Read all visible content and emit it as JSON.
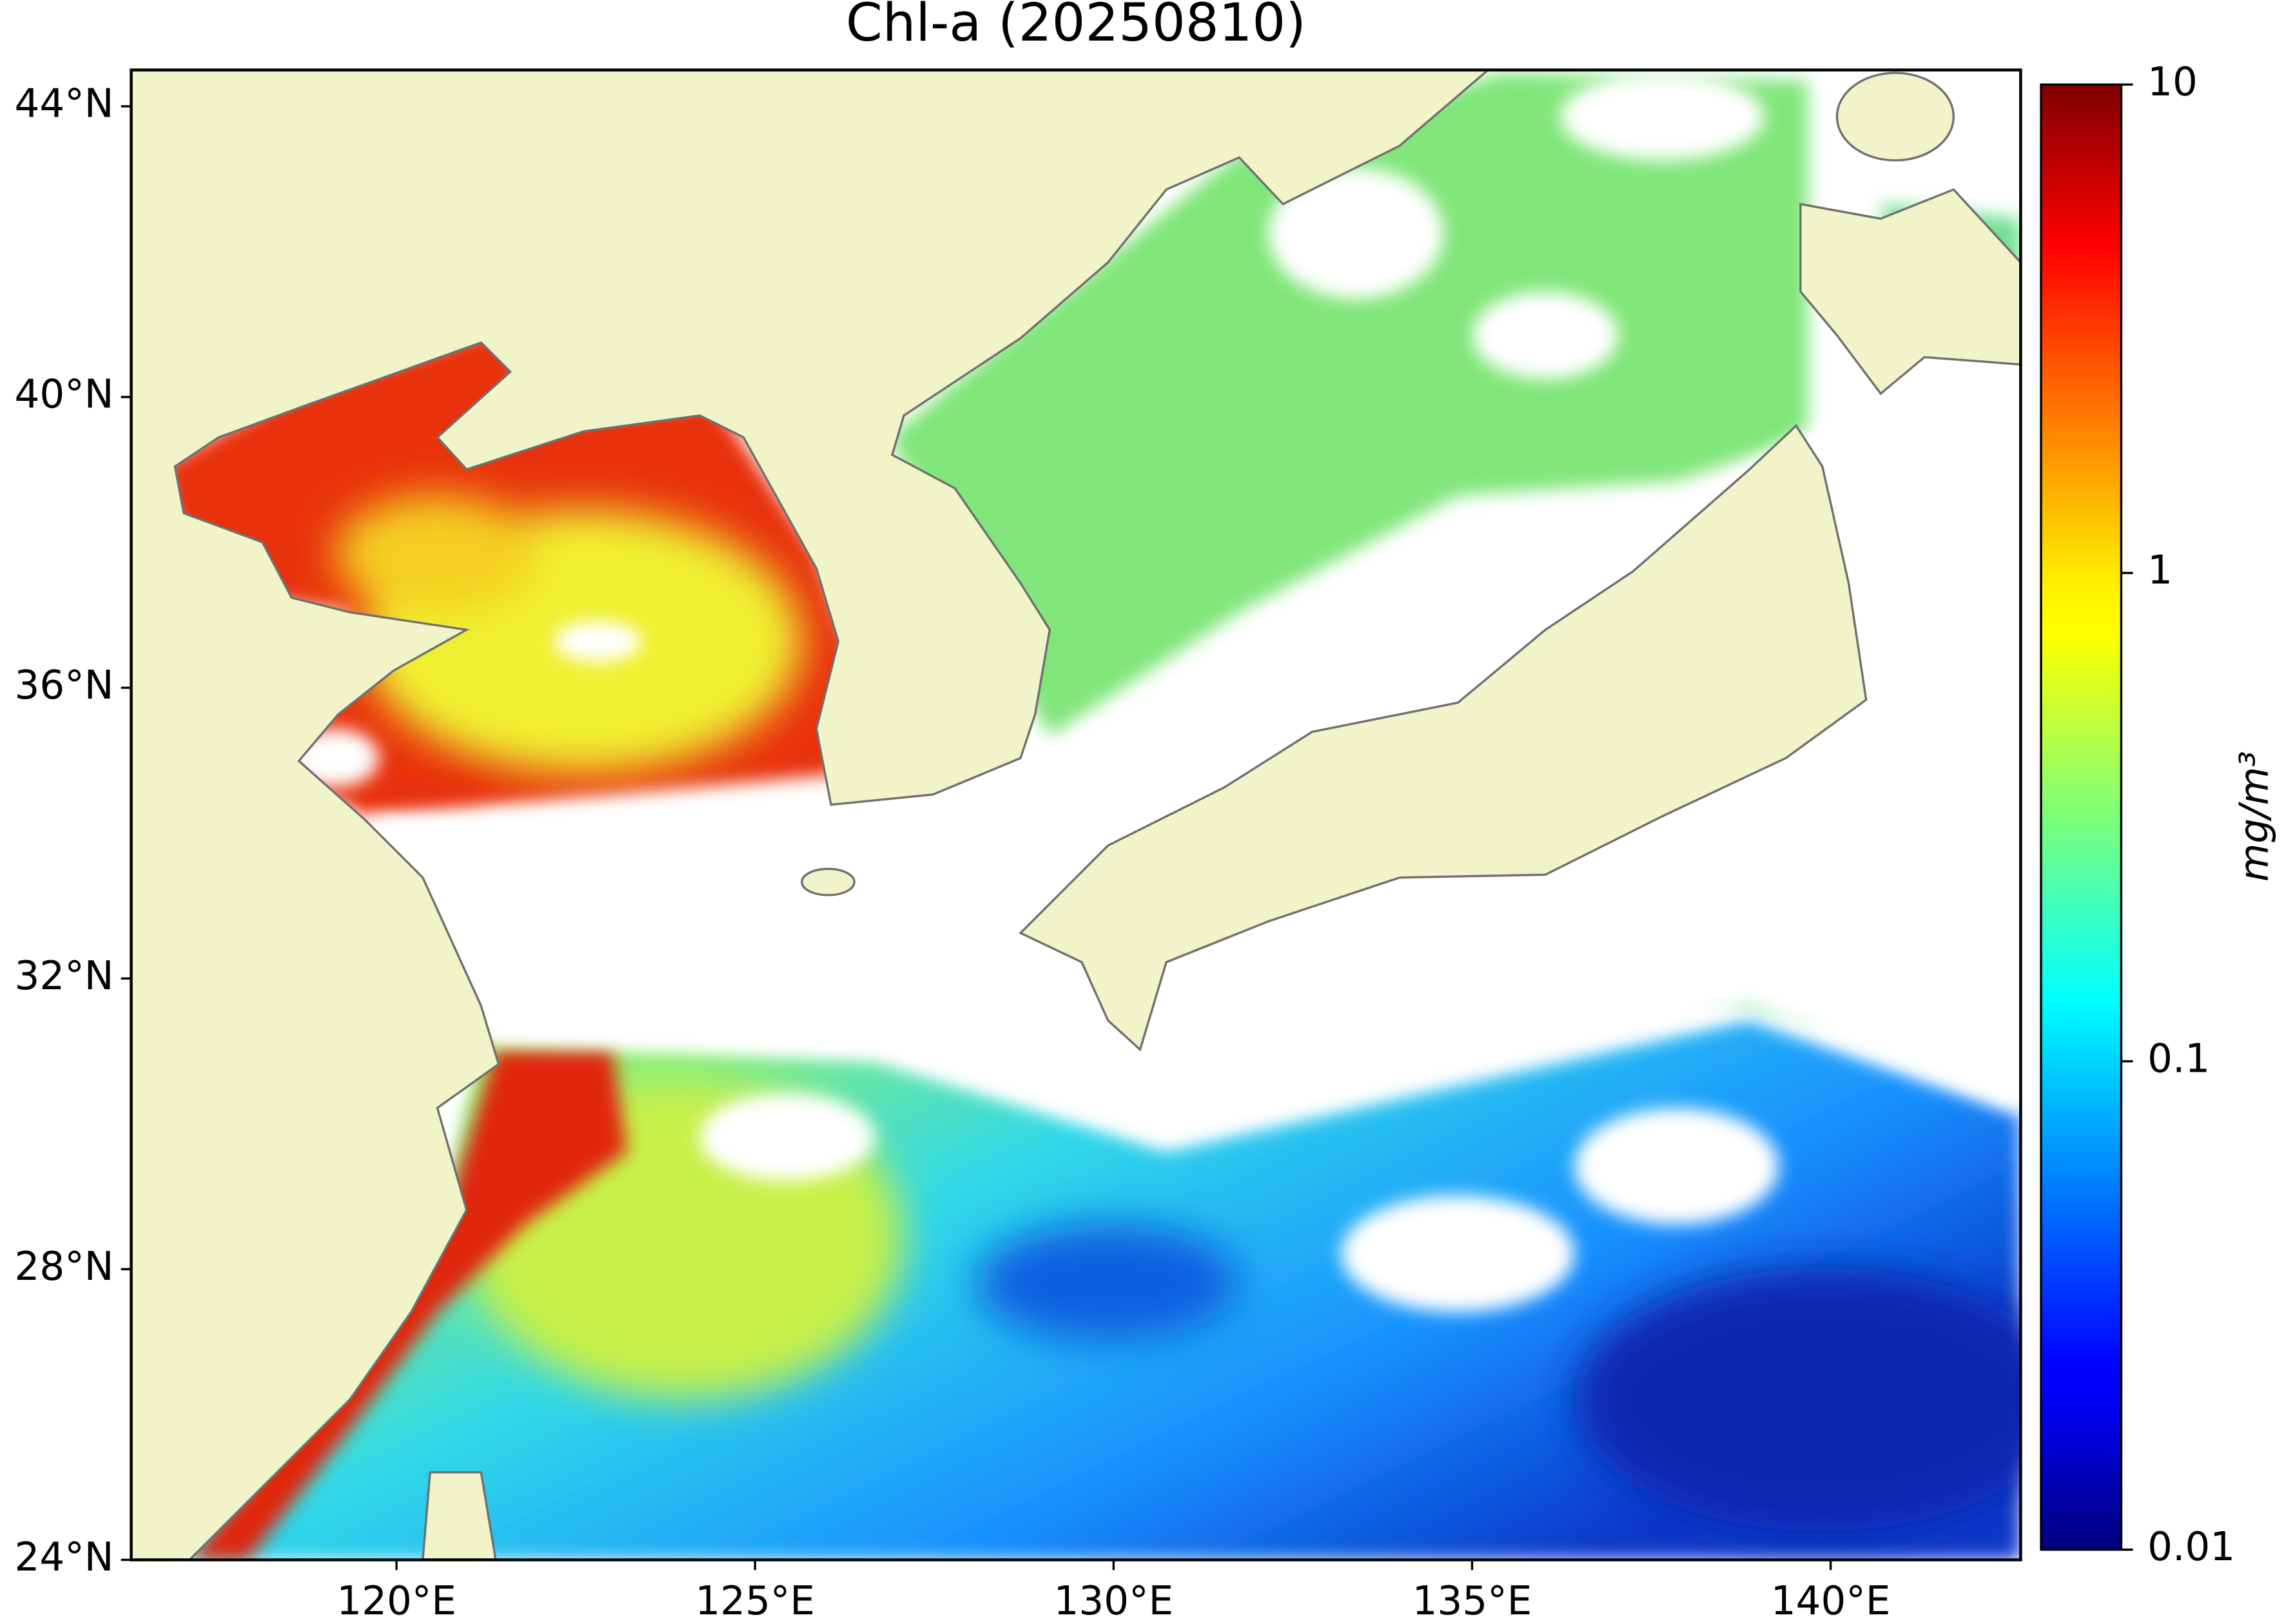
{
  "title": "Chl-a (20250810)",
  "map": {
    "xlim": [
      116.3,
      142.65
    ],
    "ylim": [
      24,
      44.5
    ],
    "xticks": [
      {
        "value": 120,
        "label": "120°E"
      },
      {
        "value": 125,
        "label": "125°E"
      },
      {
        "value": 130,
        "label": "130°E"
      },
      {
        "value": 135,
        "label": "135°E"
      },
      {
        "value": 140,
        "label": "140°E"
      }
    ],
    "yticks": [
      {
        "value": 24,
        "label": "24°N"
      },
      {
        "value": 28,
        "label": "28°N"
      },
      {
        "value": 32,
        "label": "32°N"
      },
      {
        "value": 36,
        "label": "36°N"
      },
      {
        "value": 40,
        "label": "40°N"
      },
      {
        "value": 44,
        "label": "44°N"
      }
    ]
  },
  "colorbar": {
    "label": "mg/m³",
    "scale": "log",
    "colormap": "jet",
    "lim": [
      0.01,
      10
    ],
    "ticks": [
      0.01,
      0.1,
      1,
      10
    ]
  }
}
